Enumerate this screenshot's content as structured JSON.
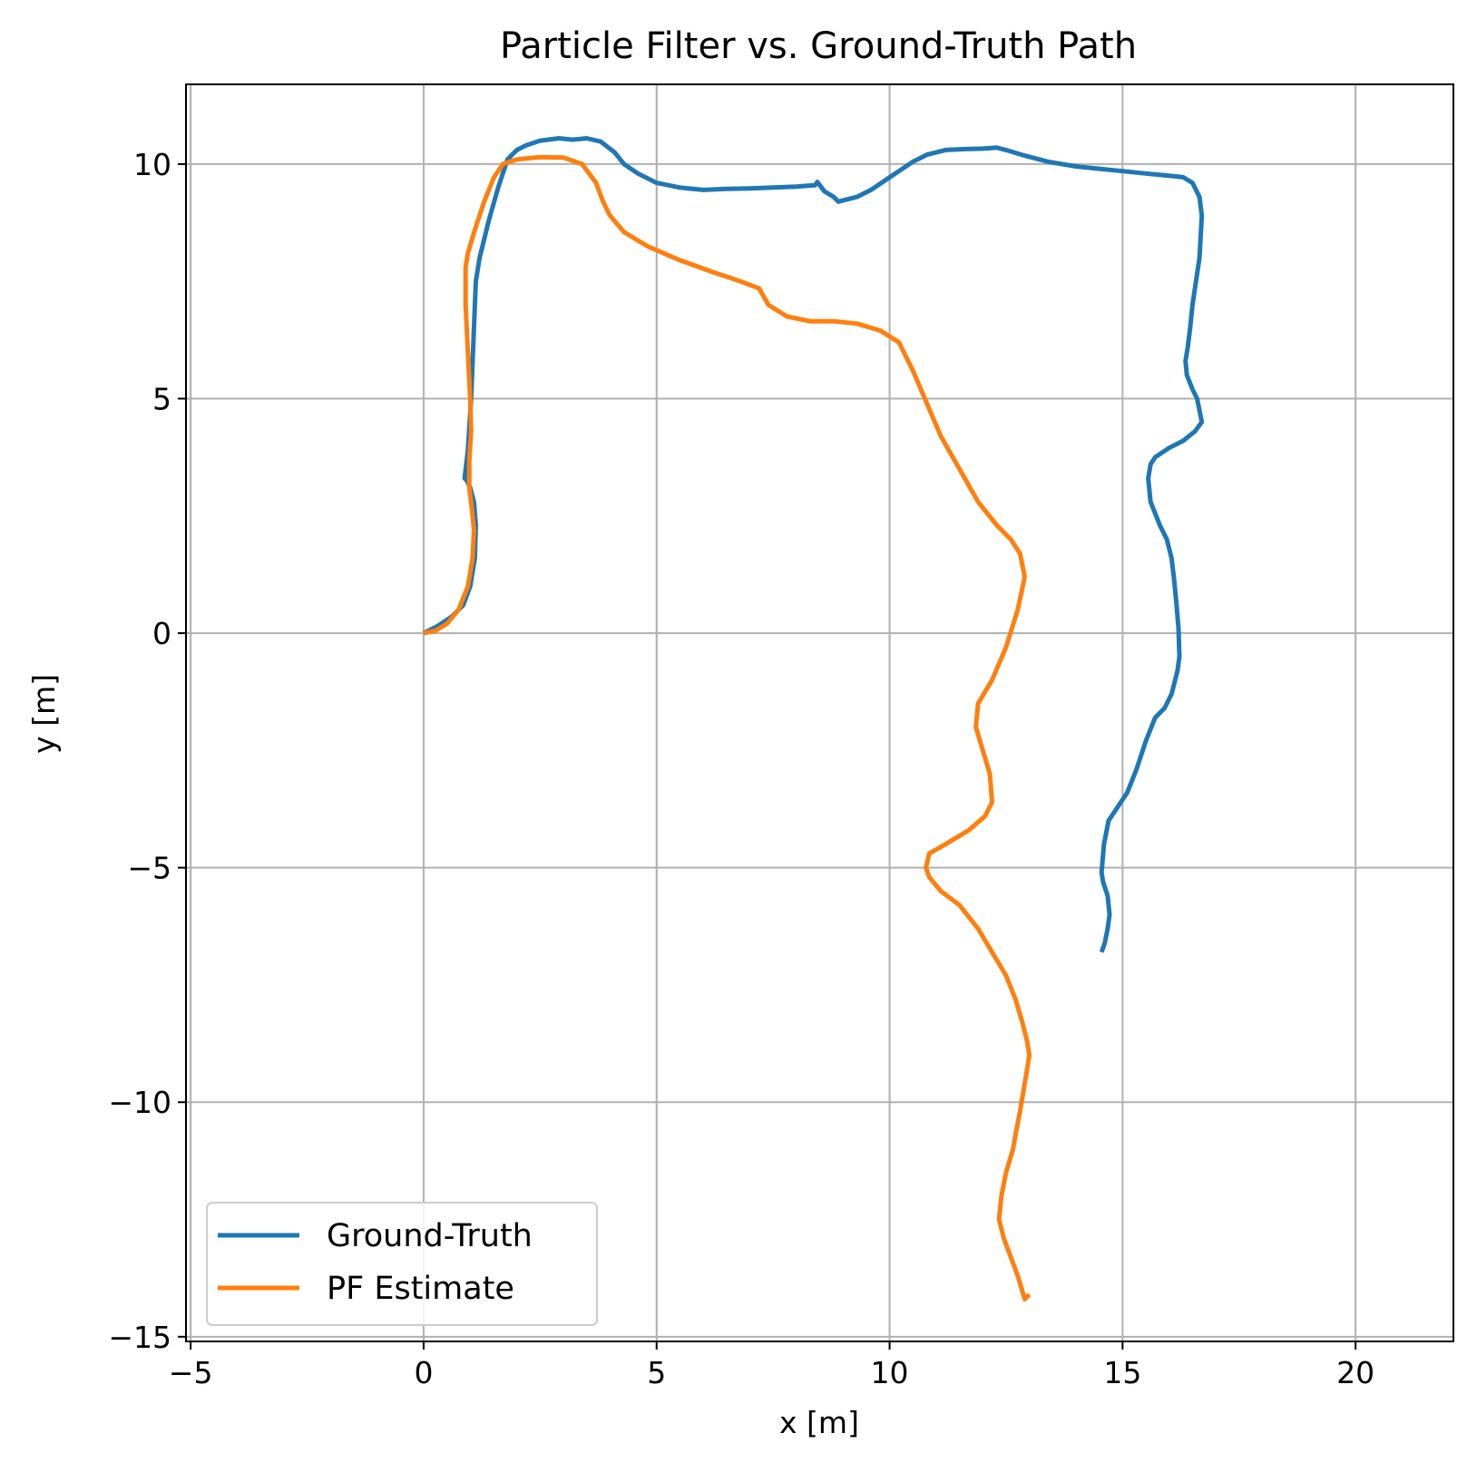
{
  "chart_data": {
    "type": "line",
    "title": "Particle Filter vs. Ground-Truth Path",
    "xlabel": "x [m]",
    "ylabel": "y [m]",
    "xlim": [
      -5.1,
      22.1
    ],
    "ylim": [
      -15.1,
      11.7
    ],
    "xticks": [
      -5,
      0,
      5,
      10,
      15,
      20
    ],
    "yticks": [
      -15,
      -10,
      -5,
      0,
      5,
      10
    ],
    "xtick_labels": [
      "−5",
      "0",
      "5",
      "10",
      "15",
      "20"
    ],
    "ytick_labels": [
      "−15",
      "−10",
      "−5",
      "0",
      "5",
      "10"
    ],
    "grid": true,
    "legend_position": "lower-left",
    "series": [
      {
        "name": "Ground-Truth",
        "color": "#1f77b4",
        "x": [
          0.0,
          0.3,
          0.6,
          0.85,
          1.0,
          1.1,
          1.12,
          1.08,
          1.0,
          0.93,
          0.88,
          0.95,
          1.02,
          1.08,
          1.12,
          1.2,
          1.4,
          1.6,
          1.8,
          2.0,
          2.2,
          2.5,
          2.9,
          3.2,
          3.5,
          3.8,
          4.1,
          4.3,
          4.6,
          5.0,
          5.5,
          6.0,
          6.5,
          7.0,
          7.5,
          8.0,
          8.4,
          8.45,
          8.6,
          8.8,
          8.9,
          9.1,
          9.3,
          9.6,
          9.9,
          10.2,
          10.5,
          10.8,
          11.2,
          11.6,
          12.0,
          12.3,
          12.5,
          12.9,
          13.4,
          14.0,
          14.5,
          15.0,
          15.5,
          16.0,
          16.3,
          16.5,
          16.65,
          16.7,
          16.65,
          16.5,
          16.45,
          16.4,
          16.35,
          16.38,
          16.5,
          16.6,
          16.65,
          16.7,
          16.55,
          16.3,
          16.0,
          15.7,
          15.6,
          15.55,
          15.6,
          15.8,
          15.95,
          16.05,
          16.1,
          16.15,
          16.2,
          16.22,
          16.18,
          16.05,
          15.9,
          15.7,
          15.5,
          15.3,
          15.1,
          14.9,
          14.7,
          14.6,
          14.55,
          14.58,
          14.68,
          14.72,
          14.68,
          14.62,
          14.55
        ],
        "y": [
          0.0,
          0.15,
          0.35,
          0.6,
          1.0,
          1.6,
          2.3,
          2.8,
          3.1,
          3.25,
          3.3,
          3.9,
          5.0,
          6.5,
          7.5,
          8.0,
          8.8,
          9.5,
          10.1,
          10.3,
          10.4,
          10.5,
          10.55,
          10.52,
          10.55,
          10.48,
          10.25,
          10.0,
          9.8,
          9.6,
          9.5,
          9.45,
          9.47,
          9.48,
          9.5,
          9.52,
          9.55,
          9.62,
          9.42,
          9.3,
          9.2,
          9.25,
          9.3,
          9.45,
          9.65,
          9.85,
          10.05,
          10.2,
          10.3,
          10.32,
          10.33,
          10.35,
          10.3,
          10.18,
          10.05,
          9.95,
          9.9,
          9.85,
          9.8,
          9.75,
          9.72,
          9.6,
          9.3,
          8.9,
          8.0,
          7.0,
          6.5,
          6.1,
          5.8,
          5.5,
          5.2,
          5.0,
          4.75,
          4.5,
          4.3,
          4.1,
          3.95,
          3.75,
          3.6,
          3.3,
          2.8,
          2.3,
          2.0,
          1.6,
          1.2,
          0.7,
          0.1,
          -0.5,
          -0.8,
          -1.3,
          -1.6,
          -1.8,
          -2.3,
          -2.9,
          -3.4,
          -3.7,
          -4.0,
          -4.5,
          -5.1,
          -5.3,
          -5.6,
          -6.0,
          -6.3,
          -6.6,
          -6.8
        ]
      },
      {
        "name": "PF Estimate",
        "color": "#ff7f0e",
        "x": [
          0.0,
          0.25,
          0.5,
          0.75,
          0.95,
          1.05,
          1.08,
          1.03,
          0.98,
          0.98,
          1.02,
          1.0,
          0.95,
          0.9,
          0.9,
          0.95,
          1.1,
          1.3,
          1.5,
          1.7,
          2.0,
          2.5,
          3.0,
          3.4,
          3.7,
          3.85,
          4.0,
          4.3,
          4.8,
          5.5,
          6.2,
          6.8,
          7.2,
          7.4,
          7.8,
          8.3,
          8.8,
          9.3,
          9.8,
          10.2,
          10.5,
          10.8,
          11.1,
          11.5,
          11.9,
          12.3,
          12.6,
          12.8,
          12.9,
          12.75,
          12.5,
          12.2,
          11.9,
          11.85,
          12.0,
          12.15,
          12.2,
          12.05,
          11.7,
          11.2,
          10.85,
          10.78,
          10.85,
          11.1,
          11.5,
          11.9,
          12.2,
          12.5,
          12.7,
          12.85,
          12.95,
          13.0,
          12.9,
          12.8,
          12.72,
          12.65,
          12.5,
          12.4,
          12.35,
          12.45,
          12.6,
          12.75,
          12.9,
          13.0
        ],
        "y": [
          0.0,
          0.05,
          0.2,
          0.5,
          1.0,
          1.6,
          2.2,
          2.7,
          3.1,
          3.7,
          4.3,
          5.0,
          6.0,
          7.0,
          7.8,
          8.1,
          8.6,
          9.2,
          9.7,
          10.0,
          10.1,
          10.15,
          10.14,
          10.0,
          9.6,
          9.2,
          8.9,
          8.55,
          8.25,
          7.95,
          7.7,
          7.5,
          7.35,
          7.0,
          6.75,
          6.65,
          6.65,
          6.6,
          6.45,
          6.2,
          5.6,
          4.9,
          4.2,
          3.5,
          2.8,
          2.3,
          2.0,
          1.7,
          1.2,
          0.5,
          -0.3,
          -1.0,
          -1.5,
          -2.0,
          -2.5,
          -3.0,
          -3.6,
          -3.9,
          -4.2,
          -4.5,
          -4.7,
          -5.0,
          -5.2,
          -5.5,
          -5.8,
          -6.3,
          -6.8,
          -7.3,
          -7.8,
          -8.3,
          -8.7,
          -9.0,
          -9.6,
          -10.2,
          -10.6,
          -11.0,
          -11.5,
          -12.0,
          -12.5,
          -12.9,
          -13.3,
          -13.7,
          -14.2,
          -14.1
        ]
      }
    ]
  }
}
